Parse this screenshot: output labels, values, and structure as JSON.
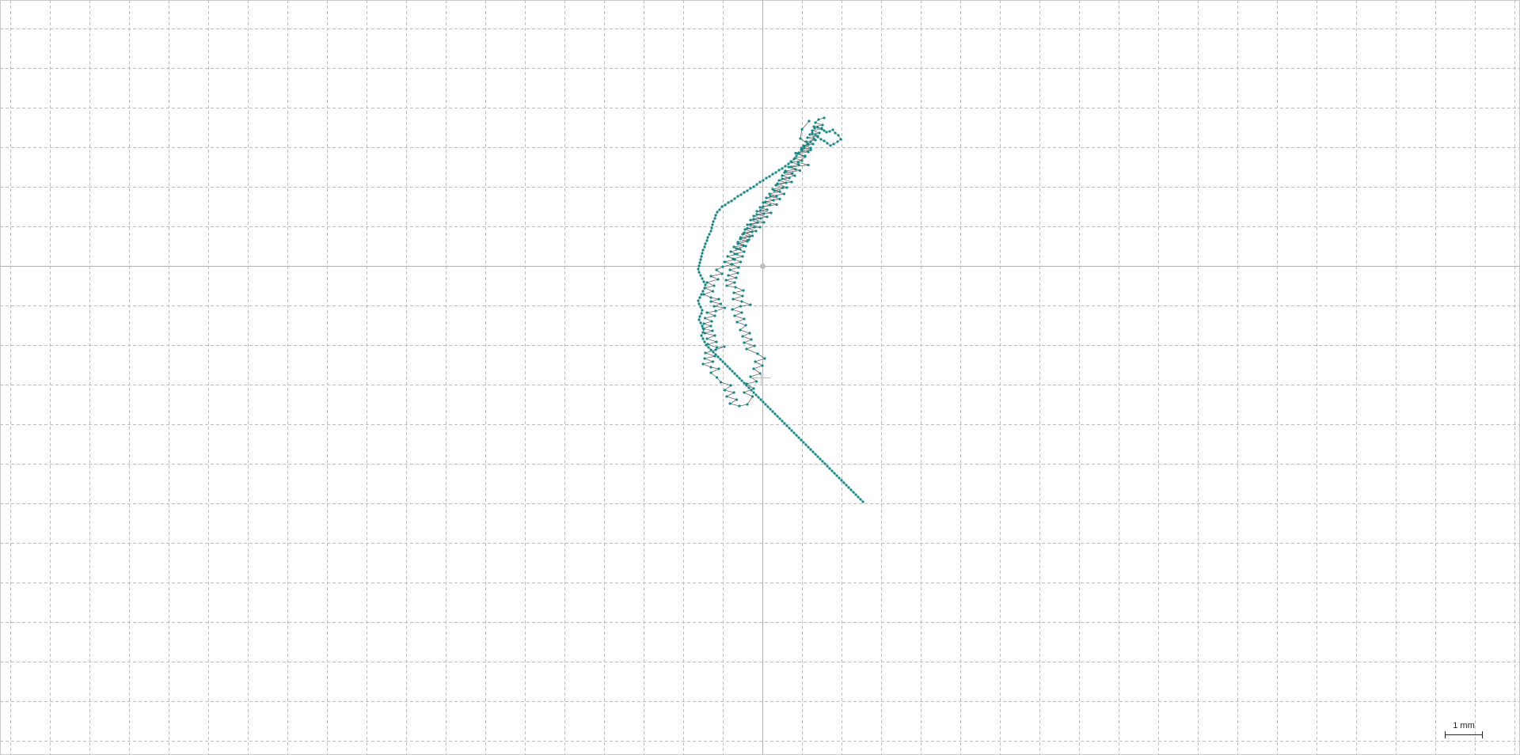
{
  "scale_bar": {
    "label": "1 mm"
  },
  "colors": {
    "point": "#0f8a8a",
    "line": "#666666",
    "grid": "#bdbdbd",
    "axis": "#b0b0b0"
  },
  "chart_data": {
    "type": "scatter",
    "grid": true,
    "grid_spacing_mm": 1,
    "origin_marker": true,
    "scale_bar": "1 mm",
    "track": [
      [
        1.18,
        3.66
      ],
      [
        1.0,
        3.45
      ],
      [
        0.96,
        3.22
      ],
      [
        1.14,
        3.09
      ],
      [
        0.99,
        2.98
      ],
      [
        1.22,
        2.93
      ],
      [
        0.84,
        2.85
      ],
      [
        1.08,
        2.76
      ],
      [
        0.9,
        2.62
      ],
      [
        1.16,
        2.55
      ],
      [
        0.72,
        2.5
      ],
      [
        0.95,
        2.41
      ],
      [
        0.56,
        2.36
      ],
      [
        0.82,
        2.28
      ],
      [
        0.5,
        2.2
      ],
      [
        0.74,
        2.12
      ],
      [
        0.38,
        2.08
      ],
      [
        0.62,
        1.98
      ],
      [
        0.3,
        1.9
      ],
      [
        0.55,
        1.82
      ],
      [
        0.2,
        1.76
      ],
      [
        0.44,
        1.69
      ],
      [
        0.08,
        1.62
      ],
      [
        0.36,
        1.55
      ],
      [
        0.02,
        1.5
      ],
      [
        -0.05,
        1.4
      ],
      [
        0.22,
        1.34
      ],
      [
        -0.14,
        1.3
      ],
      [
        0.12,
        1.24
      ],
      [
        -0.22,
        1.18
      ],
      [
        0.04,
        1.1
      ],
      [
        -0.3,
        1.05
      ],
      [
        -0.06,
        0.98
      ],
      [
        -0.38,
        0.95
      ],
      [
        -0.16,
        0.88
      ],
      [
        -0.46,
        0.84
      ],
      [
        -0.25,
        0.76
      ],
      [
        -0.55,
        0.72
      ],
      [
        -0.34,
        0.66
      ],
      [
        -0.62,
        0.6
      ],
      [
        -0.48,
        0.52
      ],
      [
        -0.72,
        0.48
      ],
      [
        -0.56,
        0.42
      ],
      [
        -0.8,
        0.36
      ],
      [
        -0.64,
        0.3
      ],
      [
        -0.88,
        0.24
      ],
      [
        -0.7,
        0.16
      ],
      [
        -0.95,
        0.1
      ],
      [
        -0.76,
        0.04
      ],
      [
        -1.0,
        -0.02
      ],
      [
        -1.16,
        -0.1
      ],
      [
        -1.02,
        -0.2
      ],
      [
        -1.3,
        -0.26
      ],
      [
        -1.12,
        -0.34
      ],
      [
        -1.4,
        -0.42
      ],
      [
        -1.22,
        -0.5
      ],
      [
        -1.45,
        -0.56
      ],
      [
        -1.25,
        -0.64
      ],
      [
        -1.48,
        -0.72
      ],
      [
        -1.3,
        -0.8
      ],
      [
        -1.1,
        -0.84
      ],
      [
        -1.3,
        -0.9
      ],
      [
        -1.05,
        -0.96
      ],
      [
        -1.22,
        -1.02
      ],
      [
        -0.95,
        -1.06
      ],
      [
        -1.18,
        -1.14
      ],
      [
        -1.4,
        -1.18
      ],
      [
        -1.2,
        -1.26
      ],
      [
        -1.45,
        -1.32
      ],
      [
        -1.28,
        -1.4
      ],
      [
        -1.48,
        -1.46
      ],
      [
        -1.3,
        -1.52
      ],
      [
        -1.5,
        -1.58
      ],
      [
        -1.26,
        -1.64
      ],
      [
        -1.45,
        -1.7
      ],
      [
        -1.2,
        -1.76
      ],
      [
        -1.4,
        -1.84
      ],
      [
        -1.16,
        -1.92
      ],
      [
        -1.38,
        -1.98
      ],
      [
        -1.15,
        -2.06
      ],
      [
        -0.96,
        -2.04
      ],
      [
        -1.18,
        -2.12
      ],
      [
        -1.44,
        -2.2
      ],
      [
        -1.2,
        -2.28
      ],
      [
        -1.46,
        -2.34
      ],
      [
        -1.25,
        -2.42
      ],
      [
        -1.5,
        -2.48
      ],
      [
        -1.3,
        -2.56
      ],
      [
        -1.1,
        -2.6
      ],
      [
        -1.3,
        -2.7
      ],
      [
        -1.15,
        -2.82
      ],
      [
        -1.05,
        -2.94
      ],
      [
        -0.8,
        -3.02
      ],
      [
        -0.95,
        -3.14
      ],
      [
        -0.72,
        -3.2
      ],
      [
        -0.9,
        -3.3
      ],
      [
        -0.65,
        -3.38
      ],
      [
        -0.82,
        -3.48
      ],
      [
        -0.58,
        -3.54
      ],
      [
        -0.38,
        -3.5
      ],
      [
        -0.25,
        -3.3
      ],
      [
        -0.46,
        -3.2
      ],
      [
        -0.22,
        -3.1
      ],
      [
        -0.4,
        -2.98
      ],
      [
        -0.15,
        -2.92
      ],
      [
        -0.3,
        -2.8
      ],
      [
        -0.05,
        -2.72
      ],
      [
        -0.22,
        -2.6
      ],
      [
        0.0,
        -2.52
      ],
      [
        -0.18,
        -2.42
      ],
      [
        0.06,
        -2.34
      ],
      [
        -0.12,
        -2.22
      ],
      [
        -0.4,
        -2.1
      ],
      [
        -0.2,
        -2.02
      ],
      [
        -0.46,
        -1.94
      ],
      [
        -0.28,
        -1.86
      ],
      [
        -0.5,
        -1.78
      ],
      [
        -0.32,
        -1.7
      ],
      [
        -0.56,
        -1.62
      ],
      [
        -0.42,
        -1.5
      ],
      [
        -0.64,
        -1.42
      ],
      [
        -0.46,
        -1.34
      ],
      [
        -0.7,
        -1.26
      ],
      [
        -0.52,
        -1.18
      ],
      [
        -0.76,
        -1.1
      ],
      [
        -0.55,
        -1.02
      ],
      [
        -0.3,
        -0.98
      ],
      [
        -0.52,
        -0.9
      ],
      [
        -0.74,
        -0.84
      ],
      [
        -0.5,
        -0.76
      ],
      [
        -0.72,
        -0.68
      ],
      [
        -0.48,
        -0.62
      ],
      [
        -0.68,
        -0.54
      ],
      [
        -0.9,
        -0.5
      ],
      [
        -0.7,
        -0.42
      ],
      [
        -0.92,
        -0.36
      ],
      [
        -0.66,
        -0.3
      ],
      [
        -0.86,
        -0.24
      ],
      [
        -0.62,
        -0.18
      ],
      [
        -0.82,
        -0.1
      ],
      [
        -0.6,
        -0.04
      ],
      [
        -0.78,
        0.04
      ],
      [
        -0.55,
        0.1
      ],
      [
        -0.74,
        0.18
      ],
      [
        -0.5,
        0.24
      ],
      [
        -0.7,
        0.3
      ],
      [
        -0.46,
        0.36
      ],
      [
        -0.66,
        0.44
      ],
      [
        -0.42,
        0.5
      ],
      [
        -0.62,
        0.56
      ],
      [
        -0.38,
        0.62
      ],
      [
        -0.56,
        0.68
      ],
      [
        -0.32,
        0.74
      ],
      [
        -0.5,
        0.8
      ],
      [
        -0.26,
        0.86
      ],
      [
        -0.44,
        0.92
      ],
      [
        -0.2,
        0.98
      ],
      [
        -0.38,
        1.04
      ],
      [
        -0.12,
        1.1
      ],
      [
        -0.3,
        1.16
      ],
      [
        -0.04,
        1.2
      ],
      [
        -0.22,
        1.26
      ],
      [
        0.04,
        1.32
      ],
      [
        -0.14,
        1.38
      ],
      [
        0.12,
        1.42
      ],
      [
        -0.06,
        1.48
      ],
      [
        0.2,
        1.54
      ],
      [
        0.02,
        1.6
      ],
      [
        0.28,
        1.66
      ],
      [
        0.1,
        1.72
      ],
      [
        0.36,
        1.76
      ],
      [
        0.18,
        1.82
      ],
      [
        0.44,
        1.88
      ],
      [
        0.26,
        1.94
      ],
      [
        0.52,
        1.98
      ],
      [
        0.34,
        2.04
      ],
      [
        0.6,
        2.1
      ],
      [
        0.42,
        2.16
      ],
      [
        0.68,
        2.22
      ],
      [
        0.5,
        2.28
      ],
      [
        0.76,
        2.34
      ],
      [
        0.58,
        2.4
      ],
      [
        0.84,
        2.44
      ],
      [
        0.66,
        2.5
      ],
      [
        0.92,
        2.56
      ],
      [
        0.74,
        2.62
      ],
      [
        1.0,
        2.66
      ],
      [
        0.82,
        2.72
      ],
      [
        1.08,
        2.78
      ],
      [
        0.9,
        2.84
      ],
      [
        1.16,
        2.88
      ],
      [
        0.98,
        2.94
      ],
      [
        1.22,
        2.98
      ],
      [
        1.04,
        3.04
      ],
      [
        1.28,
        3.08
      ],
      [
        1.1,
        3.14
      ],
      [
        1.34,
        3.18
      ],
      [
        1.14,
        3.24
      ],
      [
        1.4,
        3.28
      ],
      [
        1.2,
        3.32
      ],
      [
        1.44,
        3.36
      ],
      [
        1.26,
        3.42
      ],
      [
        1.5,
        3.46
      ],
      [
        1.3,
        3.52
      ],
      [
        1.52,
        3.56
      ],
      [
        1.34,
        3.62
      ],
      [
        1.42,
        3.7
      ],
      [
        1.56,
        3.74
      ]
    ],
    "points": [
      [
        1.32,
        3.48
      ],
      [
        1.4,
        3.5
      ],
      [
        1.5,
        3.48
      ],
      [
        1.56,
        3.42
      ],
      [
        1.62,
        3.38
      ],
      [
        1.7,
        3.4
      ],
      [
        1.78,
        3.44
      ],
      [
        1.84,
        3.36
      ],
      [
        1.92,
        3.3
      ],
      [
        1.98,
        3.2
      ],
      [
        1.9,
        3.14
      ],
      [
        1.8,
        3.08
      ],
      [
        1.72,
        3.04
      ],
      [
        1.64,
        3.1
      ],
      [
        1.56,
        3.16
      ],
      [
        1.48,
        3.2
      ],
      [
        1.4,
        3.26
      ],
      [
        1.34,
        3.32
      ],
      [
        1.26,
        3.36
      ],
      [
        1.3,
        3.22
      ],
      [
        1.22,
        3.14
      ],
      [
        1.16,
        3.06
      ],
      [
        1.06,
        3.0
      ],
      [
        1.0,
        2.92
      ],
      [
        0.92,
        2.86
      ],
      [
        0.86,
        2.78
      ],
      [
        0.8,
        2.7
      ],
      [
        0.72,
        2.64
      ],
      [
        0.66,
        2.58
      ],
      [
        0.58,
        2.52
      ],
      [
        0.5,
        2.46
      ],
      [
        0.42,
        2.42
      ],
      [
        0.34,
        2.36
      ],
      [
        0.26,
        2.32
      ],
      [
        0.18,
        2.26
      ],
      [
        0.1,
        2.22
      ],
      [
        0.02,
        2.16
      ],
      [
        -0.06,
        2.12
      ],
      [
        -0.14,
        2.06
      ],
      [
        -0.22,
        2.0
      ],
      [
        -0.3,
        1.96
      ],
      [
        -0.38,
        1.9
      ],
      [
        -0.46,
        1.86
      ],
      [
        -0.54,
        1.8
      ],
      [
        -0.62,
        1.76
      ],
      [
        -0.7,
        1.7
      ],
      [
        -0.78,
        1.64
      ],
      [
        -0.86,
        1.6
      ],
      [
        -0.94,
        1.54
      ],
      [
        -1.02,
        1.5
      ],
      [
        -1.08,
        1.42
      ],
      [
        -1.14,
        1.36
      ],
      [
        -1.18,
        1.28
      ],
      [
        -1.2,
        1.2
      ],
      [
        -1.24,
        1.12
      ],
      [
        -1.26,
        1.04
      ],
      [
        -1.28,
        0.96
      ],
      [
        -1.3,
        0.88
      ],
      [
        -1.34,
        0.8
      ],
      [
        -1.38,
        0.72
      ],
      [
        -1.4,
        0.64
      ],
      [
        -1.44,
        0.56
      ],
      [
        -1.46,
        0.48
      ],
      [
        -1.5,
        0.4
      ],
      [
        -1.52,
        0.32
      ],
      [
        -1.54,
        0.24
      ],
      [
        -1.56,
        0.16
      ],
      [
        -1.58,
        0.08
      ],
      [
        -1.6,
        0.0
      ],
      [
        -1.62,
        -0.08
      ],
      [
        -1.6,
        -0.16
      ],
      [
        -1.56,
        -0.24
      ],
      [
        -1.52,
        -0.32
      ],
      [
        -1.48,
        -0.4
      ],
      [
        -1.44,
        -0.48
      ],
      [
        -1.46,
        -0.56
      ],
      [
        -1.5,
        -0.64
      ],
      [
        -1.54,
        -0.72
      ],
      [
        -1.58,
        -0.8
      ],
      [
        -1.62,
        -0.88
      ],
      [
        -1.6,
        -0.96
      ],
      [
        -1.56,
        -1.04
      ],
      [
        -1.52,
        -1.12
      ],
      [
        -1.54,
        -1.2
      ],
      [
        -1.58,
        -1.28
      ],
      [
        -1.6,
        -1.36
      ],
      [
        -1.56,
        -1.44
      ],
      [
        -1.52,
        -1.52
      ],
      [
        -1.48,
        -1.6
      ],
      [
        -1.5,
        -1.68
      ],
      [
        -1.54,
        -1.76
      ],
      [
        -1.5,
        -1.84
      ],
      [
        -1.46,
        -1.92
      ],
      [
        -1.42,
        -2.0
      ],
      [
        -1.36,
        -2.06
      ],
      [
        -1.3,
        -2.12
      ],
      [
        -1.24,
        -2.18
      ],
      [
        -1.18,
        -2.24
      ],
      [
        -1.12,
        -2.3
      ],
      [
        -1.06,
        -2.36
      ],
      [
        -1.0,
        -2.42
      ],
      [
        -0.94,
        -2.48
      ],
      [
        -0.88,
        -2.54
      ],
      [
        -0.82,
        -2.6
      ],
      [
        -0.76,
        -2.66
      ],
      [
        -0.7,
        -2.72
      ],
      [
        -0.64,
        -2.78
      ],
      [
        -0.58,
        -2.84
      ],
      [
        -0.52,
        -2.9
      ],
      [
        -0.46,
        -2.96
      ],
      [
        -0.4,
        -3.02
      ],
      [
        -0.34,
        -3.08
      ],
      [
        -0.28,
        -3.14
      ],
      [
        -0.22,
        -3.2
      ],
      [
        -0.16,
        -3.26
      ],
      [
        -0.1,
        -3.32
      ],
      [
        -0.04,
        -3.38
      ],
      [
        0.02,
        -3.44
      ],
      [
        0.08,
        -3.5
      ],
      [
        0.14,
        -3.56
      ],
      [
        0.2,
        -3.62
      ],
      [
        0.26,
        -3.68
      ],
      [
        0.32,
        -3.74
      ],
      [
        0.38,
        -3.8
      ],
      [
        0.44,
        -3.86
      ],
      [
        0.5,
        -3.92
      ],
      [
        0.56,
        -3.98
      ],
      [
        0.62,
        -4.04
      ],
      [
        0.68,
        -4.1
      ],
      [
        0.74,
        -4.16
      ],
      [
        0.8,
        -4.22
      ],
      [
        0.86,
        -4.28
      ],
      [
        0.92,
        -4.34
      ],
      [
        0.98,
        -4.4
      ],
      [
        1.04,
        -4.46
      ],
      [
        1.1,
        -4.52
      ],
      [
        1.16,
        -4.58
      ],
      [
        1.22,
        -4.64
      ],
      [
        1.28,
        -4.7
      ],
      [
        1.34,
        -4.76
      ],
      [
        1.4,
        -4.82
      ],
      [
        1.46,
        -4.88
      ],
      [
        1.52,
        -4.94
      ],
      [
        1.58,
        -5.0
      ],
      [
        1.64,
        -5.06
      ],
      [
        1.7,
        -5.12
      ],
      [
        1.76,
        -5.18
      ],
      [
        1.82,
        -5.24
      ],
      [
        1.88,
        -5.3
      ],
      [
        1.94,
        -5.36
      ],
      [
        2.0,
        -5.42
      ],
      [
        2.06,
        -5.48
      ],
      [
        2.12,
        -5.54
      ],
      [
        2.18,
        -5.6
      ],
      [
        2.24,
        -5.66
      ],
      [
        2.3,
        -5.72
      ],
      [
        2.36,
        -5.78
      ],
      [
        2.42,
        -5.84
      ],
      [
        2.48,
        -5.9
      ],
      [
        2.54,
        -5.96
      ]
    ]
  }
}
